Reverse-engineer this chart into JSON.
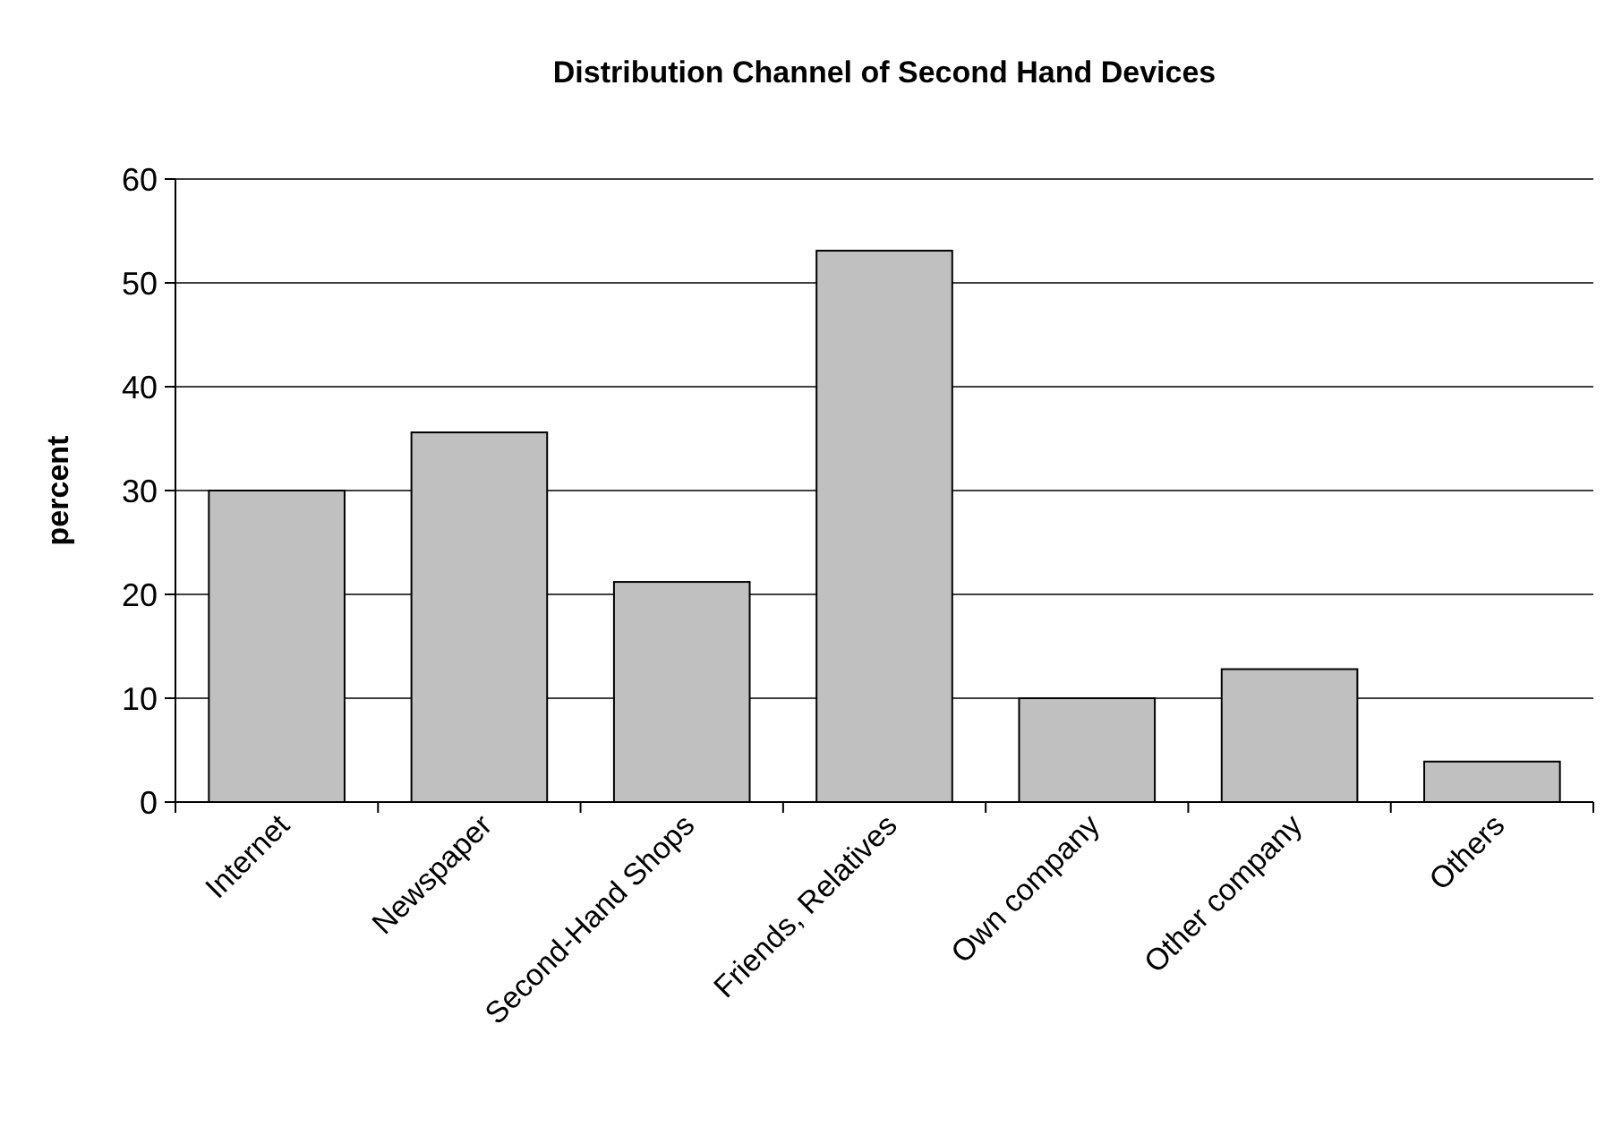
{
  "chart_data": {
    "type": "bar",
    "title": "Distribution Channel of Second Hand Devices",
    "ylabel": "percent",
    "categories": [
      "Internet",
      "Newspaper",
      "Second-Hand Shops",
      "Friends, Relatives",
      "Own company",
      "Other company",
      "Others"
    ],
    "values": [
      30,
      35.6,
      21.2,
      53.1,
      10,
      12.8,
      3.9
    ],
    "color": "#c0c0c0",
    "ylim": [
      0,
      60
    ],
    "yticks": [
      0,
      10,
      20,
      30,
      40,
      50,
      60
    ],
    "grid": "y"
  }
}
